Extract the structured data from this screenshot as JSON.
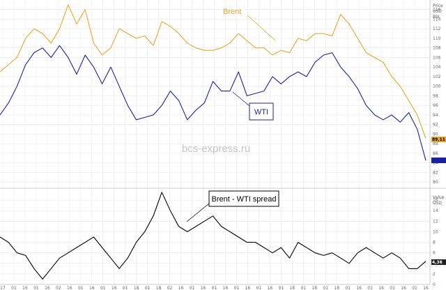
{
  "watermark": "bcs-express.ru",
  "colors": {
    "brent": "#e8a628",
    "wti": "#1a1fa8",
    "spread": "#000000",
    "grid": "#e3e3e3",
    "axis": "#bbbbbb"
  },
  "chart_data": [
    {
      "type": "line",
      "panel": "price",
      "ylabel": "Price USD Bbl",
      "ylim": [
        79,
        118
      ],
      "yticks": [
        80,
        82,
        84,
        86,
        88,
        90,
        92,
        94,
        96,
        98,
        100,
        102,
        104,
        106,
        108,
        110,
        112,
        114,
        116
      ],
      "grid": true,
      "x_tick_labels": [
        "17",
        "01",
        "16",
        "01",
        "16",
        "02",
        "16",
        "01",
        "16",
        "01",
        "16",
        "01",
        "18",
        "01",
        "18",
        "02",
        "16",
        "01",
        "16",
        "01",
        "16",
        "01",
        "16",
        "01",
        "16",
        "01",
        "18",
        "01",
        "18",
        "01",
        "18",
        "01",
        "16",
        "01",
        "16",
        "01",
        "16",
        "01",
        "16"
      ],
      "x": [
        0,
        0.02,
        0.04,
        0.06,
        0.08,
        0.1,
        0.12,
        0.14,
        0.16,
        0.18,
        0.2,
        0.22,
        0.24,
        0.26,
        0.28,
        0.3,
        0.32,
        0.34,
        0.36,
        0.38,
        0.4,
        0.42,
        0.44,
        0.46,
        0.48,
        0.5,
        0.52,
        0.54,
        0.56,
        0.58,
        0.6,
        0.62,
        0.64,
        0.66,
        0.68,
        0.7,
        0.72,
        0.74,
        0.76,
        0.78,
        0.8,
        0.82,
        0.84,
        0.86,
        0.88,
        0.9,
        0.92,
        0.94,
        0.96,
        0.98,
        1
      ],
      "series": [
        {
          "name": "Brent",
          "values": [
            103,
            104.5,
            106,
            110,
            112,
            111,
            109,
            112,
            117,
            113,
            116,
            109,
            106.5,
            108,
            112,
            111,
            110,
            110.5,
            108.5,
            113.5,
            112.5,
            111,
            109,
            108,
            107.5,
            107.5,
            108,
            109,
            111,
            109.5,
            108,
            108,
            106.5,
            107.5,
            107,
            110,
            109.5,
            111,
            111,
            110.5,
            115,
            113,
            110,
            107,
            106,
            105,
            102,
            100,
            97,
            94,
            89.1
          ]
        },
        {
          "name": "WTI",
          "values": [
            94,
            96.5,
            100,
            104.5,
            107,
            108,
            106,
            108.5,
            106,
            102.5,
            106.5,
            104,
            100.5,
            104,
            100,
            96,
            93,
            93.5,
            94,
            96,
            99,
            97,
            93,
            95,
            96.5,
            101,
            99,
            99,
            103,
            98,
            98.5,
            99,
            102,
            100.5,
            102,
            103,
            102,
            105,
            106.5,
            107,
            104,
            102,
            99.5,
            96,
            94,
            93,
            94,
            92.5,
            94.5,
            91,
            84.5
          ]
        }
      ],
      "last_values": {
        "Brent": "89,11",
        "WTI": "84,?"
      }
    },
    {
      "type": "line",
      "panel": "spread",
      "ylabel": "Value USD",
      "ylim": [
        0,
        18
      ],
      "yticks": [
        0,
        2,
        4,
        6,
        8,
        10,
        12,
        14,
        16
      ],
      "grid": true,
      "x": [
        0,
        0.02,
        0.04,
        0.06,
        0.08,
        0.1,
        0.12,
        0.14,
        0.16,
        0.18,
        0.2,
        0.22,
        0.24,
        0.26,
        0.28,
        0.3,
        0.32,
        0.34,
        0.36,
        0.38,
        0.4,
        0.42,
        0.44,
        0.46,
        0.48,
        0.5,
        0.52,
        0.54,
        0.56,
        0.58,
        0.6,
        0.62,
        0.64,
        0.66,
        0.68,
        0.7,
        0.72,
        0.74,
        0.76,
        0.78,
        0.8,
        0.82,
        0.84,
        0.86,
        0.88,
        0.9,
        0.92,
        0.94,
        0.96,
        0.98,
        1
      ],
      "series": [
        {
          "name": "Brent - WTI spread",
          "values": [
            9,
            8,
            6,
            5.5,
            3,
            1,
            3,
            5,
            6,
            7,
            8,
            9,
            7,
            5,
            3,
            5,
            8,
            10,
            13,
            17.5,
            14,
            11,
            10,
            11,
            12,
            13,
            11,
            10,
            9,
            8,
            8,
            7,
            6,
            7,
            5,
            8,
            7,
            6,
            5.5,
            6,
            5,
            4,
            6,
            7,
            6,
            5,
            6,
            5,
            3,
            3,
            4.4
          ]
        }
      ],
      "last_values": {
        "Brent - WTI spread": "4,36"
      }
    }
  ],
  "annotations": {
    "brent_label": "Brent",
    "wti_label": "WTI",
    "spread_label": "Brent - WTI spread"
  }
}
